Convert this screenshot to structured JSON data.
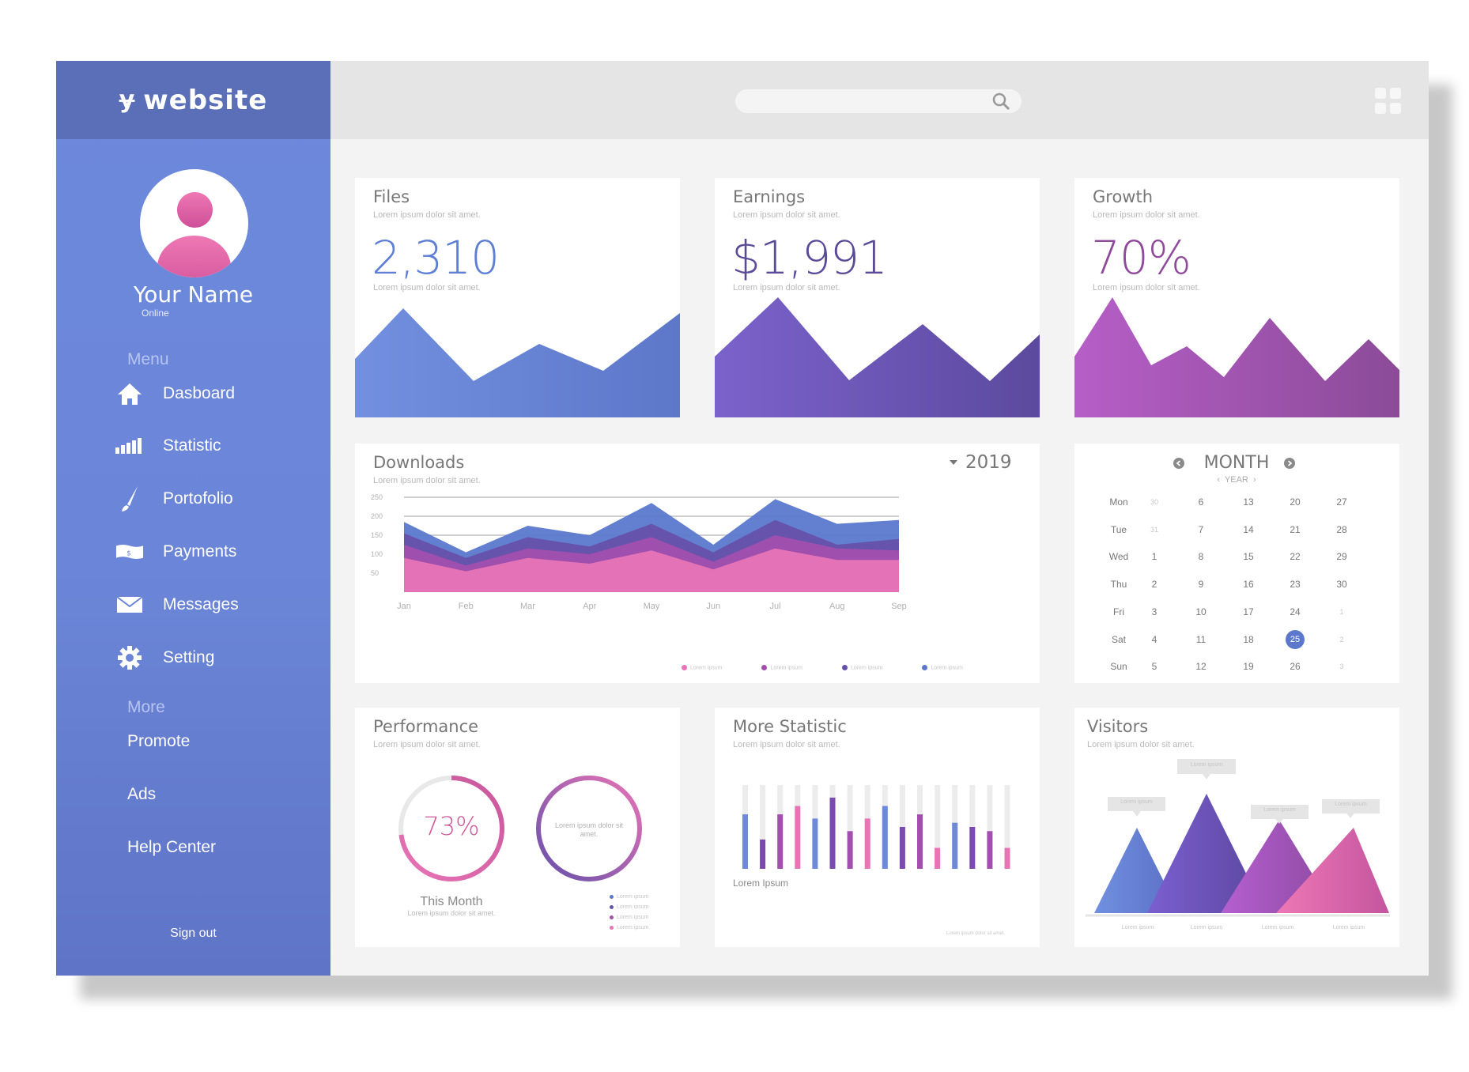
{
  "brand": {
    "name": "website",
    "logo_icon": "y-logo-icon"
  },
  "user": {
    "name": "Your Name",
    "status": "Online"
  },
  "menu": {
    "label": "Menu",
    "items": [
      {
        "label": "Dasboard",
        "icon": "home-icon"
      },
      {
        "label": "Statistic",
        "icon": "signal-bars-icon"
      },
      {
        "label": "Portofolio",
        "icon": "brush-icon"
      },
      {
        "label": "Payments",
        "icon": "money-icon"
      },
      {
        "label": "Messages",
        "icon": "envelope-icon"
      },
      {
        "label": "Setting",
        "icon": "gear-icon"
      }
    ]
  },
  "more": {
    "label": "More",
    "items": [
      {
        "label": "Promote"
      },
      {
        "label": "Ads"
      },
      {
        "label": "Help Center"
      }
    ]
  },
  "sign_out": "Sign out",
  "search": {
    "placeholder": ""
  },
  "cards": {
    "files": {
      "title": "Files",
      "sub": "Lorem ipsum dolor sit amet.",
      "value": "2,310",
      "sub2": "Lorem ipsum dolor sit amet.",
      "color": "#5e7fd6"
    },
    "earnings": {
      "title": "Earnings",
      "sub": "Lorem ipsum dolor sit amet.",
      "value": "$1,991",
      "sub2": "Lorem ipsum dolor sit amet.",
      "color": "#5a4a98"
    },
    "growth": {
      "title": "Growth",
      "sub": "Lorem ipsum dolor sit amet.",
      "value": "70%",
      "sub2": "Lorem ipsum dolor sit amet.",
      "color": "#8f4a9b"
    }
  },
  "downloads": {
    "title": "Downloads",
    "sub": "Lorem ipsum dolor sit amet.",
    "year": "2019",
    "legend": [
      "Lorem ipsum",
      "Lorem ipsum",
      "Lorem ipsum",
      "Lorem ipsum"
    ]
  },
  "calendar": {
    "month": "MONTH",
    "year": "YEAR",
    "days": [
      "Mon",
      "Tue",
      "Wed",
      "Thu",
      "Fri",
      "Sat",
      "Sun"
    ],
    "columns": [
      [
        "30",
        "31",
        "1",
        "2",
        "3",
        "4",
        "5"
      ],
      [
        "6",
        "7",
        "8",
        "9",
        "10",
        "11",
        "12"
      ],
      [
        "13",
        "14",
        "15",
        "16",
        "17",
        "18",
        "19"
      ],
      [
        "20",
        "21",
        "22",
        "23",
        "24",
        "25",
        "26"
      ],
      [
        "27",
        "28",
        "29",
        "30",
        "1",
        "2",
        "3"
      ]
    ],
    "highlight_pink": "14",
    "highlight_blue": "25"
  },
  "performance": {
    "title": "Performance",
    "sub": "Lorem ipsum dolor sit amet.",
    "percent": "73%",
    "ring_text": "Lorem ipsum dolor sit amet.",
    "caption": "This Month",
    "caption_sub": "Lorem ipsum dolor sit amet.",
    "legend": [
      "Lorem ipsum",
      "Lorem ipsum",
      "Lorem ipsum",
      "Lorem ipsum"
    ]
  },
  "more_statistic": {
    "title": "More Statistic",
    "sub": "Lorem ipsum dolor sit amet.",
    "label": "Lorem Ipsum",
    "footer": "Lorem ipsum dolor sit amet."
  },
  "visitors": {
    "title": "Visitors",
    "sub": "Lorem ipsum dolor sit amet.",
    "tooltips": [
      "Lorem ipsum",
      "Lorem ipsum",
      "Lorem ipsum",
      "Lorem ipsum"
    ],
    "labels": [
      "Lorem ipsum",
      "Lorem ipsum",
      "Lorem ipsum",
      "Lorem ipsum"
    ]
  },
  "chart_data": [
    {
      "type": "area",
      "title": "Downloads",
      "categories": [
        "Jan",
        "Feb",
        "Mar",
        "Apr",
        "May",
        "Jun",
        "Jul",
        "Aug",
        "Sep"
      ],
      "yticks": [
        250,
        200,
        150,
        100,
        50
      ],
      "ylim": [
        0,
        250
      ],
      "series": [
        {
          "values": [
            185,
            105,
            175,
            150,
            235,
            125,
            245,
            180,
            190
          ],
          "color": "#5b78cc"
        },
        {
          "values": [
            155,
            90,
            145,
            120,
            180,
            105,
            190,
            125,
            140
          ],
          "color": "#6651aa"
        },
        {
          "values": [
            125,
            70,
            115,
            100,
            145,
            80,
            150,
            115,
            110
          ],
          "color": "#a24fae"
        },
        {
          "values": [
            90,
            55,
            90,
            75,
            110,
            60,
            115,
            85,
            85
          ],
          "color": "#e874b6"
        }
      ]
    },
    {
      "type": "bar",
      "title": "More Statistic",
      "values": [
        0.65,
        0.35,
        0.65,
        0.75,
        0.6,
        0.85,
        0.45,
        0.6,
        0.75,
        0.5,
        0.65,
        0.25,
        0.55,
        0.5,
        0.45,
        0.25
      ],
      "colors": [
        "#6d89dc",
        "#7a4ab0",
        "#a24fae",
        "#e874b6"
      ]
    },
    {
      "type": "pie",
      "title": "Performance",
      "values": [
        73
      ]
    }
  ]
}
